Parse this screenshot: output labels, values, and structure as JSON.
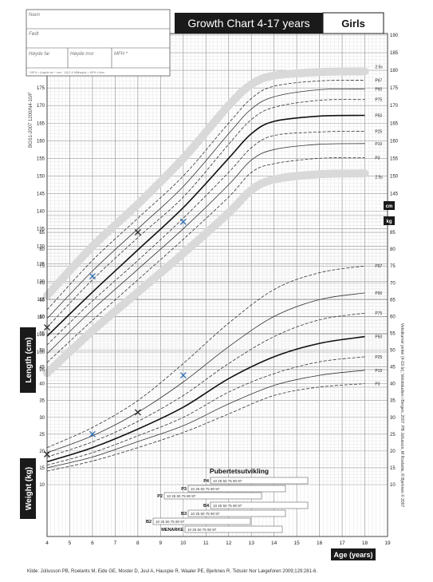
{
  "header": {
    "title": "Growth Chart 4-17 years",
    "gender": "Girls",
    "doc_id": "BGS1-2007 1200/N4-10/F"
  },
  "form": {
    "name_label": "Navn",
    "born_label": "Født",
    "father_label": "Høyde far",
    "mother_label": "Høyde mor",
    "mfh_label": "MFH *",
    "note": "* MFH = (høyde far + mor - 13)/2  &  Målhøyde = MFH ± 8cm"
  },
  "axes": {
    "xlabel": "Age (years)",
    "length_label": "Length (cm)",
    "weight_label": "Weight (kg)",
    "cm_unit": "cm",
    "kg_unit": "kg"
  },
  "puberty": {
    "title": "Pubertetsutvikling",
    "rows": [
      {
        "label": "P4",
        "ticks": "10  25  50  75  90  97"
      },
      {
        "label": "P3",
        "ticks": "10  25  50  75  90  97"
      },
      {
        "label": "P2",
        "ticks": "10  25  50  75  90  97"
      },
      {
        "label": "B4",
        "ticks": "10  25  50  75  90  97"
      },
      {
        "label": "B3",
        "ticks": "10  25  50  75  90  97"
      },
      {
        "label": "B2",
        "ticks": "10  25  50  75  90  97"
      },
      {
        "label": "MENARKE",
        "ticks": "10  25  50  75  90  97"
      }
    ]
  },
  "side_credit": "Vekstkurver jenter (4-19 år), Vekststudien i Bergen, 2007. PB Júlíusson, M Roelants, R Bjerknes © 2007",
  "footer": {
    "source": "Kilde: Júlíusson PB, Roelants M, Eide GE, Moster D, Juul A, Hauspie R, Waaler PE, Bjerknes R. Tidsskr Nor Lægeforen 2009;129:281-6."
  },
  "chart_data": [
    {
      "type": "line",
      "title": "",
      "xlabel": "Age (years)",
      "ylabel": "Length (cm)",
      "xlim": [
        4,
        19
      ],
      "ylim": [
        90,
        190
      ],
      "grid": true,
      "x": [
        4,
        6,
        8,
        10,
        12,
        13,
        14,
        16,
        18
      ],
      "series": [
        {
          "name": "+2.5SD",
          "values": [
            116,
            130,
            142,
            155,
            170,
            176,
            178.5,
            179.5,
            179.7
          ]
        },
        {
          "name": "P97",
          "values": [
            112,
            126,
            138,
            150,
            165,
            172,
            175.5,
            177,
            177.2
          ]
        },
        {
          "name": "P90",
          "values": [
            109.5,
            123,
            135,
            147,
            162,
            169,
            172.5,
            174.5,
            174.7
          ]
        },
        {
          "name": "P75",
          "values": [
            107,
            120.5,
            132.5,
            144,
            159,
            166,
            169.5,
            171.5,
            171.7
          ]
        },
        {
          "name": "P50",
          "values": [
            104.5,
            117,
            129,
            141,
            155,
            162,
            165.5,
            167,
            167.2
          ]
        },
        {
          "name": "P25",
          "values": [
            102,
            114.5,
            126,
            138,
            151,
            158,
            161.5,
            162.5,
            162.7
          ]
        },
        {
          "name": "P10",
          "values": [
            99.5,
            112,
            123.5,
            135,
            147.5,
            154.5,
            157.5,
            159,
            159.2
          ]
        },
        {
          "name": "P3",
          "values": [
            97,
            109,
            120.5,
            132,
            144,
            151,
            153.5,
            155,
            155.2
          ]
        },
        {
          "name": "-2.5SD",
          "values": [
            94,
            106,
            117,
            128,
            139.5,
            146,
            149,
            150.5,
            150.7
          ]
        }
      ],
      "annotations": [
        "2.5s",
        "2.5s"
      ],
      "points": [
        {
          "x": 4,
          "y": 107,
          "series": "measured",
          "marker": "x",
          "color": "#222222"
        },
        {
          "x": 6,
          "y": 121.5,
          "series": "measured",
          "marker": "x",
          "color": "#2e6fb5"
        },
        {
          "x": 8,
          "y": 134,
          "series": "measured",
          "marker": "x",
          "color": "#222222"
        },
        {
          "x": 10,
          "y": 137,
          "series": "measured",
          "marker": "x",
          "color": "#2e6fb5"
        }
      ]
    },
    {
      "type": "line",
      "title": "",
      "xlabel": "Age (years)",
      "ylabel": "Weight (kg)",
      "xlim": [
        4,
        19
      ],
      "ylim": [
        10,
        90
      ],
      "grid": true,
      "x": [
        4,
        6,
        8,
        10,
        12,
        14,
        16,
        18
      ],
      "series": [
        {
          "name": "P97",
          "values": [
            21,
            27,
            35,
            46,
            58,
            68,
            73,
            75
          ]
        },
        {
          "name": "P90",
          "values": [
            19.5,
            24.5,
            31.5,
            40.5,
            51,
            60,
            65,
            67
          ]
        },
        {
          "name": "P75",
          "values": [
            18.2,
            22.7,
            28.8,
            36.5,
            46,
            54,
            59,
            61
          ]
        },
        {
          "name": "P50",
          "values": [
            16.8,
            21,
            26.5,
            33,
            41.5,
            48,
            52,
            54
          ]
        },
        {
          "name": "P25",
          "values": [
            15.8,
            19.5,
            24.5,
            30,
            37.5,
            43,
            46.5,
            48
          ]
        },
        {
          "name": "P10",
          "values": [
            15,
            18.2,
            22.8,
            27.5,
            34,
            39.5,
            42.5,
            44
          ]
        },
        {
          "name": "P3",
          "values": [
            14,
            17,
            21,
            25.5,
            31,
            36.5,
            39,
            40
          ]
        }
      ],
      "points": [
        {
          "x": 4,
          "y": 19,
          "series": "measured",
          "marker": "x",
          "color": "#222222"
        },
        {
          "x": 6,
          "y": 25,
          "series": "measured",
          "marker": "x",
          "color": "#2e6fb5"
        },
        {
          "x": 8,
          "y": 31.5,
          "series": "measured",
          "marker": "x",
          "color": "#222222"
        },
        {
          "x": 10,
          "y": 42.5,
          "series": "measured",
          "marker": "x",
          "color": "#2e6fb5"
        }
      ]
    }
  ],
  "colors": {
    "grid_major": "#9a9a9a",
    "grid_minor": "#d8d8d8",
    "band": "#d9d9d9",
    "p50": "#111111",
    "curve": "#333333",
    "measure_blue": "#2e6fb5",
    "header_bg": "#1a1a1a"
  }
}
